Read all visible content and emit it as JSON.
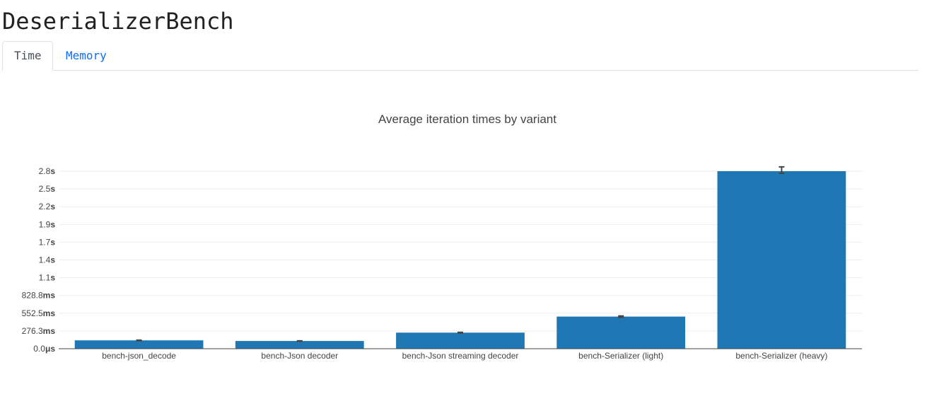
{
  "page": {
    "title": "DeserializerBench"
  },
  "tabs": [
    {
      "label": "Time",
      "active": true
    },
    {
      "label": "Memory",
      "active": false
    }
  ],
  "chart_data": {
    "type": "bar",
    "title": "Average iteration times by variant",
    "xlabel": "",
    "ylabel": "",
    "categories": [
      "bench-json_decode",
      "bench-Json decoder",
      "bench-Json streaming decoder",
      "bench-Serializer (light)",
      "bench-Serializer (heavy)"
    ],
    "values_ms": [
      130,
      120,
      250,
      500,
      2780
    ],
    "error_ms": [
      4,
      3,
      5,
      10,
      50
    ],
    "ylim_ms": [
      0,
      2763
    ],
    "y_ticks": [
      {
        "value_ms": 0,
        "num": "0.0",
        "unit": "μs"
      },
      {
        "value_ms": 276.3,
        "num": "276.3",
        "unit": "ms"
      },
      {
        "value_ms": 552.5,
        "num": "552.5",
        "unit": "ms"
      },
      {
        "value_ms": 828.8,
        "num": "828.8",
        "unit": "ms"
      },
      {
        "value_ms": 1105,
        "num": "1.1",
        "unit": "s"
      },
      {
        "value_ms": 1381.3,
        "num": "1.4",
        "unit": "s"
      },
      {
        "value_ms": 1657.5,
        "num": "1.7",
        "unit": "s"
      },
      {
        "value_ms": 1933.8,
        "num": "1.9",
        "unit": "s"
      },
      {
        "value_ms": 2210,
        "num": "2.2",
        "unit": "s"
      },
      {
        "value_ms": 2486.3,
        "num": "2.5",
        "unit": "s"
      },
      {
        "value_ms": 2762.5,
        "num": "2.8",
        "unit": "s"
      }
    ],
    "grid": true,
    "bar_color": "#1f77b4",
    "error_color": "#444444",
    "grid_color": "#eeeeee",
    "axis_color": "#444444"
  }
}
